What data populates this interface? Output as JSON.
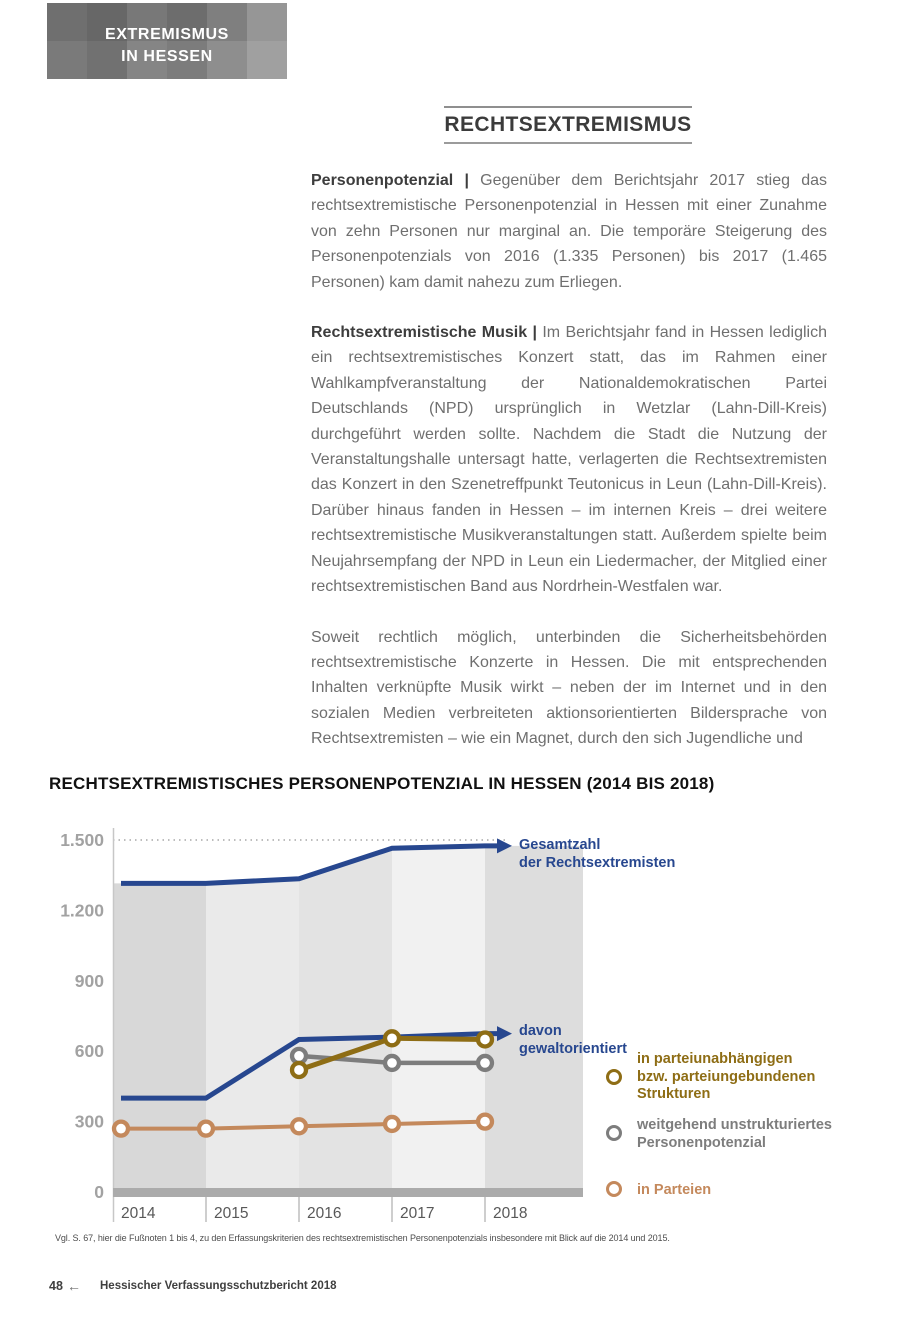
{
  "badge": {
    "line1": "EXTREMISMUS",
    "line2": "IN HESSEN"
  },
  "page_title": "RECHTSEXTREMISMUS",
  "paragraphs": [
    {
      "lead": "Personenpotenzial |",
      "text": "Gegenüber dem Berichtsjahr 2017 stieg das rechtsextremistische Personenpotenzial in Hessen mit einer Zunahme von zehn Personen nur marginal an. Die temporäre Steigerung des Personenpotenzials von 2016 (1.335 Personen) bis 2017 (1.465 Personen) kam damit nahezu zum Erliegen."
    },
    {
      "lead": "Rechtsextremistische Musik |",
      "text": "Im Berichtsjahr fand in Hessen lediglich ein rechtsextremistisches Konzert statt, das im Rahmen einer Wahlkampfveranstaltung der Nationaldemokratischen Partei Deutschlands (NPD) ursprünglich in Wetzlar (Lahn-Dill-Kreis) durchgeführt werden sollte. Nachdem die Stadt die Nutzung der Veranstaltungshalle untersagt hatte, verlagerten die Rechtsextremisten das Konzert in den Szenetreffpunkt Teutonicus in Leun (Lahn-Dill-Kreis). Darüber hinaus fanden in Hessen – im internen Kreis – drei weitere rechtsextremistische Musikveranstaltungen statt. Außerdem spielte beim Neujahrsempfang der NPD in Leun ein Liedermacher, der Mitglied einer rechtsextremistischen Band aus Nordrhein-Westfalen war."
    },
    {
      "lead": "",
      "text": "Soweit rechtlich möglich, unterbinden die Sicherheitsbehörden rechtsextremistische Konzerte in Hessen. Die mit entsprechenden Inhalten verknüpfte Musik wirkt – neben der im Internet und in den sozialen Medien verbreiteten aktionsorientierten Bildersprache von Rechtsextremisten – wie ein Magnet, durch den sich Jugendliche und"
    }
  ],
  "chart_data": {
    "type": "line",
    "title": "RECHTSEXTREMISTISCHES PERSONENPOTENZIAL IN HESSEN (2014 BIS 2018)",
    "categories": [
      "2014",
      "2015",
      "2016",
      "2017",
      "2018"
    ],
    "series": [
      {
        "name": "Gesamtzahl der Rechtsextremisten",
        "label_lines": [
          "Gesamtzahl",
          "der Rechtsextremisten"
        ],
        "color": "#27478f",
        "values": [
          1315,
          1315,
          1335,
          1465,
          1475
        ],
        "marker": "none",
        "arrow": true,
        "area_fill": true
      },
      {
        "name": "davon gewaltorientiert",
        "label_lines": [
          "davon",
          "gewaltorientiert"
        ],
        "color": "#27478f",
        "values": [
          400,
          400,
          650,
          660,
          675
        ],
        "marker": "none",
        "arrow": true
      },
      {
        "name": "in parteiunabhängigen bzw. parteiungebundenen Strukturen",
        "label_lines": [
          "in parteiunabhängigen",
          "bzw. parteiungebundenen",
          "Strukturen"
        ],
        "color": "#8e6d15",
        "values": [
          null,
          null,
          520,
          655,
          650
        ],
        "marker": "ring"
      },
      {
        "name": "weitgehend unstrukturiertes Personenpotenzial",
        "label_lines": [
          "weitgehend unstrukturiertes",
          "Personenpotenzial"
        ],
        "color": "#7d7d7d",
        "values": [
          null,
          null,
          580,
          550,
          550
        ],
        "marker": "ring"
      },
      {
        "name": "in Parteien",
        "label_lines": [
          "in Parteien"
        ],
        "color": "#c4895c",
        "values": [
          270,
          270,
          280,
          290,
          300
        ],
        "marker": "ring"
      }
    ],
    "ylim": [
      0,
      1500
    ],
    "yticks": [
      {
        "value": 0,
        "label": "0"
      },
      {
        "value": 300,
        "label": "300"
      },
      {
        "value": 600,
        "label": "600"
      },
      {
        "value": 900,
        "label": "900"
      },
      {
        "value": 1200,
        "label": "1.200"
      },
      {
        "value": 1500,
        "label": "1.500"
      }
    ],
    "grid": "dotted top gridline at 1.500 only",
    "legend_position": "right",
    "band_colors": [
      "#d8d8d8",
      "#eaeaea",
      "#e3e3e3",
      "#f1f1f1",
      "#dddddd"
    ],
    "baseline_bar_color": "#ababab"
  },
  "footnote": "Vgl. S. 67, hier die Fußnoten 1 bis 4, zu den Erfassungskriterien des rechtsextremistischen Personenpotenzials insbesondere mit Blick auf die 2014 und 2015.",
  "footer": {
    "page_number": "48",
    "back_arrow": "←",
    "text": "Hessischer Verfassungsschutzbericht 2018"
  }
}
